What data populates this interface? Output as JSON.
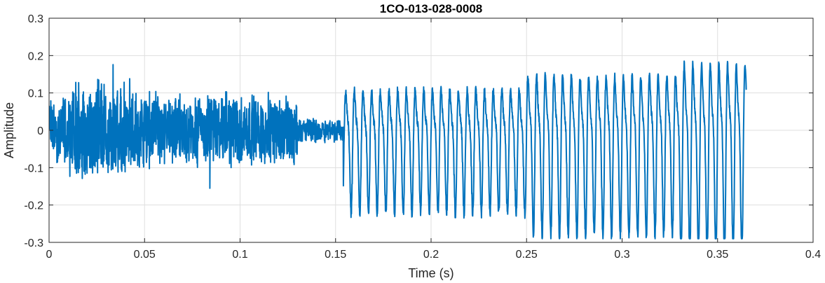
{
  "chart_data": {
    "type": "line",
    "title": "1CO-013-028-0008",
    "xlabel": "Time (s)",
    "ylabel": "Amplitude",
    "xlim": [
      0,
      0.4
    ],
    "ylim": [
      -0.3,
      0.3
    ],
    "grid": true,
    "xticks": [
      "0",
      "0.05",
      "0.1",
      "0.15",
      "0.2",
      "0.25",
      "0.3",
      "0.35",
      "0.4"
    ],
    "yticks": [
      "0.3",
      "0.2",
      "0.1",
      "0",
      "-0.1",
      "-0.2",
      "-0.3"
    ],
    "series": [
      {
        "color": "#0072BD",
        "duration": 0.365,
        "segments": [
          {
            "kind": "noise",
            "t_start": 0.0,
            "t_end": 0.01,
            "amplitude": 0.1
          },
          {
            "kind": "noise",
            "t_start": 0.01,
            "t_end": 0.04,
            "amplitude": 0.15
          },
          {
            "kind": "noise",
            "t_start": 0.04,
            "t_end": 0.1,
            "amplitude": 0.11
          },
          {
            "kind": "noise",
            "t_start": 0.1,
            "t_end": 0.13,
            "amplitude": 0.1
          },
          {
            "kind": "noise",
            "t_start": 0.13,
            "t_end": 0.154,
            "amplitude": 0.035
          },
          {
            "kind": "voiced",
            "t_start": 0.154,
            "t_end": 0.25,
            "amplitude": 0.13
          },
          {
            "kind": "voiced",
            "t_start": 0.25,
            "t_end": 0.33,
            "amplitude": 0.17
          },
          {
            "kind": "voiced",
            "t_start": 0.33,
            "t_end": 0.365,
            "amplitude": 0.2
          }
        ],
        "voiced_frequency_hz": 220,
        "peak_max": 0.23,
        "peak_min": -0.29
      }
    ]
  }
}
